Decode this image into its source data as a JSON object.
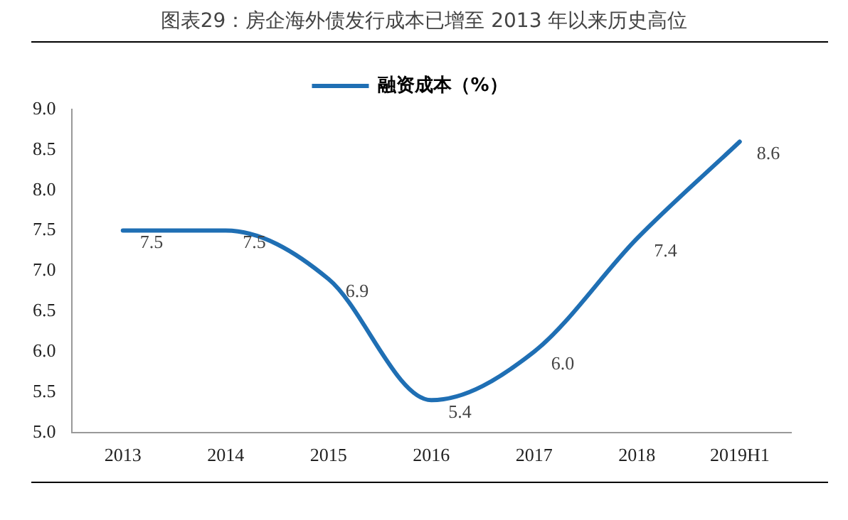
{
  "chart_data": {
    "type": "line",
    "title": "图表29：房企海外债发行成本已增至 2013 年以来历史高位",
    "categories": [
      "2013",
      "2014",
      "2015",
      "2016",
      "2017",
      "2018",
      "2019H1"
    ],
    "series": [
      {
        "name": "融资成本（%）",
        "color": "#1f6fb4",
        "values": [
          7.5,
          7.5,
          6.9,
          5.4,
          6.0,
          7.4,
          8.6
        ],
        "value_labels": [
          "7.5",
          "7.5",
          "6.9",
          "5.4",
          "6.0",
          "7.4",
          "8.6"
        ]
      }
    ],
    "ylim": [
      5.0,
      9.0
    ],
    "yticks": [
      {
        "value": 5.0,
        "label": "5.0"
      },
      {
        "value": 5.5,
        "label": "5.5"
      },
      {
        "value": 6.0,
        "label": "6.0"
      },
      {
        "value": 6.5,
        "label": "6.5"
      },
      {
        "value": 7.0,
        "label": "7.0"
      },
      {
        "value": 7.5,
        "label": "7.5"
      },
      {
        "value": 8.0,
        "label": "8.0"
      },
      {
        "value": 8.5,
        "label": "8.5"
      },
      {
        "value": 9.0,
        "label": "9.0"
      }
    ],
    "grid": false,
    "legend": "top",
    "marker": "none",
    "line_style": "solid"
  }
}
